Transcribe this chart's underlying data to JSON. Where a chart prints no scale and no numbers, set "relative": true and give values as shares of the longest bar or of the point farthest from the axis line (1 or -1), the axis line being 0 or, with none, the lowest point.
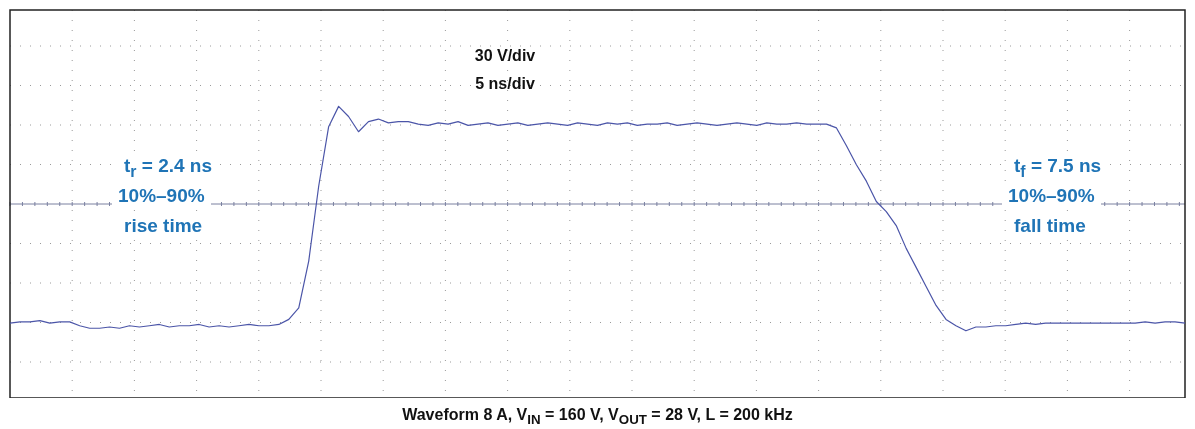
{
  "chart_data": {
    "type": "line",
    "relative": true,
    "grid": true,
    "marker": "none",
    "color": "#4b55a8",
    "title": "Waveform 8 A, V$_{IN}$ = 160 V, V$_{OUT}$ = 28 V, L = 200 kHz",
    "annotations": [
      "30 V/div",
      "5 ns/div",
      "t$_{r}$ = 2.4 ns",
      "10%–90%",
      "rise time",
      "t$_{f}$ = 7.5 ns",
      "10%–90%",
      "fall time"
    ],
    "categories": [
      null,
      null,
      null,
      null,
      null,
      null,
      null,
      null,
      null,
      null,
      null,
      null,
      null,
      null,
      null,
      null,
      null,
      null,
      null,
      null,
      null,
      null,
      null,
      null,
      null,
      null,
      null,
      null,
      null,
      null,
      null,
      null,
      null,
      null,
      null,
      null,
      null,
      null,
      null,
      null,
      null,
      null,
      null,
      null,
      null,
      null,
      null,
      null,
      null,
      null,
      null,
      null,
      null,
      null,
      null,
      null,
      null,
      null,
      null,
      null,
      null,
      null,
      null,
      null,
      null,
      null,
      null,
      null,
      null,
      null,
      null,
      null,
      null,
      null,
      null,
      null,
      null,
      null,
      null,
      null,
      null,
      null,
      null,
      null,
      null,
      null,
      null,
      null,
      null,
      null,
      null,
      null,
      null,
      null,
      null,
      null,
      null,
      null,
      null,
      null,
      null,
      null,
      null,
      null,
      null,
      null,
      null,
      null,
      null,
      null,
      null,
      null,
      null,
      null,
      null,
      null,
      null,
      null,
      null
    ],
    "values": [
      -0.94,
      -0.93,
      -0.93,
      -0.92,
      -0.94,
      -0.93,
      -0.93,
      -0.96,
      -0.98,
      -0.98,
      -0.97,
      -0.98,
      -0.96,
      -0.97,
      -0.96,
      -0.95,
      -0.97,
      -0.96,
      -0.96,
      -0.95,
      -0.97,
      -0.96,
      -0.97,
      -0.96,
      -0.95,
      -0.96,
      -0.96,
      -0.95,
      -0.91,
      -0.82,
      -0.45,
      0.14,
      0.61,
      0.77,
      0.69,
      0.57,
      0.65,
      0.67,
      0.64,
      0.65,
      0.65,
      0.63,
      0.62,
      0.64,
      0.63,
      0.65,
      0.62,
      0.63,
      0.64,
      0.62,
      0.63,
      0.64,
      0.62,
      0.63,
      0.64,
      0.63,
      0.62,
      0.64,
      0.63,
      0.62,
      0.64,
      0.63,
      0.64,
      0.62,
      0.63,
      0.63,
      0.64,
      0.62,
      0.63,
      0.64,
      0.63,
      0.62,
      0.63,
      0.64,
      0.63,
      0.62,
      0.64,
      0.63,
      0.63,
      0.64,
      0.63,
      0.63,
      0.63,
      0.6,
      0.46,
      0.31,
      0.18,
      0.02,
      -0.06,
      -0.17,
      -0.35,
      -0.5,
      -0.65,
      -0.8,
      -0.91,
      -0.96,
      -1,
      -0.97,
      -0.97,
      -0.96,
      -0.96,
      -0.95,
      -0.94,
      -0.95,
      -0.94,
      -0.94,
      -0.94,
      -0.94,
      -0.94,
      -0.94,
      -0.94,
      -0.94,
      -0.94,
      -0.94,
      -0.93,
      -0.94,
      -0.93,
      -0.93,
      -0.94
    ]
  }
}
